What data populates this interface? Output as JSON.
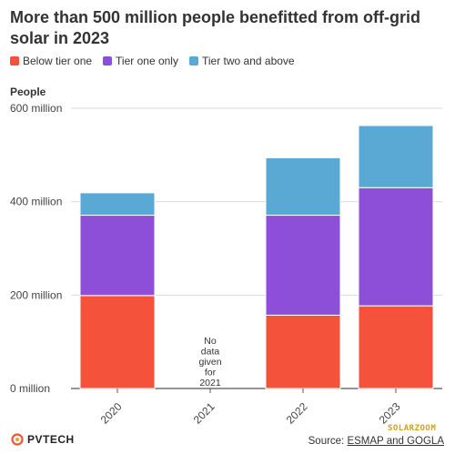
{
  "title": "More than 500 million people benefitted from off-grid solar in 2023",
  "legend": [
    {
      "label": "Below tier one",
      "color": "#f4523b"
    },
    {
      "label": "Tier one only",
      "color": "#8e4fd8"
    },
    {
      "label": "Tier two and above",
      "color": "#5aa9d4"
    }
  ],
  "ylabel": "People",
  "no_data_note": [
    "No",
    "data",
    "given",
    "for",
    "2021"
  ],
  "logo_text": "PVTECH",
  "source_prefix": "Source: ",
  "source_link": "ESMAP and GOGLA",
  "watermark": "SOLARZOOM",
  "chart_data": {
    "type": "bar",
    "stacked": true,
    "categories": [
      "2020",
      "2021",
      "2022",
      "2023"
    ],
    "series": [
      {
        "name": "Below tier one",
        "values": [
          199,
          null,
          157,
          177
        ],
        "color": "#f4523b"
      },
      {
        "name": "Tier one only",
        "values": [
          172,
          null,
          214,
          253
        ],
        "color": "#8e4fd8"
      },
      {
        "name": "Tier two and above",
        "values": [
          48,
          null,
          123,
          133
        ],
        "color": "#5aa9d4"
      }
    ],
    "ylabel": "People",
    "ylim": [
      0,
      600
    ],
    "yticks": [
      0,
      200,
      400,
      600
    ],
    "ytick_labels": [
      "0 million",
      "200 million",
      "400 million",
      "600 million"
    ],
    "grid": true,
    "legend_position": "top-left"
  }
}
